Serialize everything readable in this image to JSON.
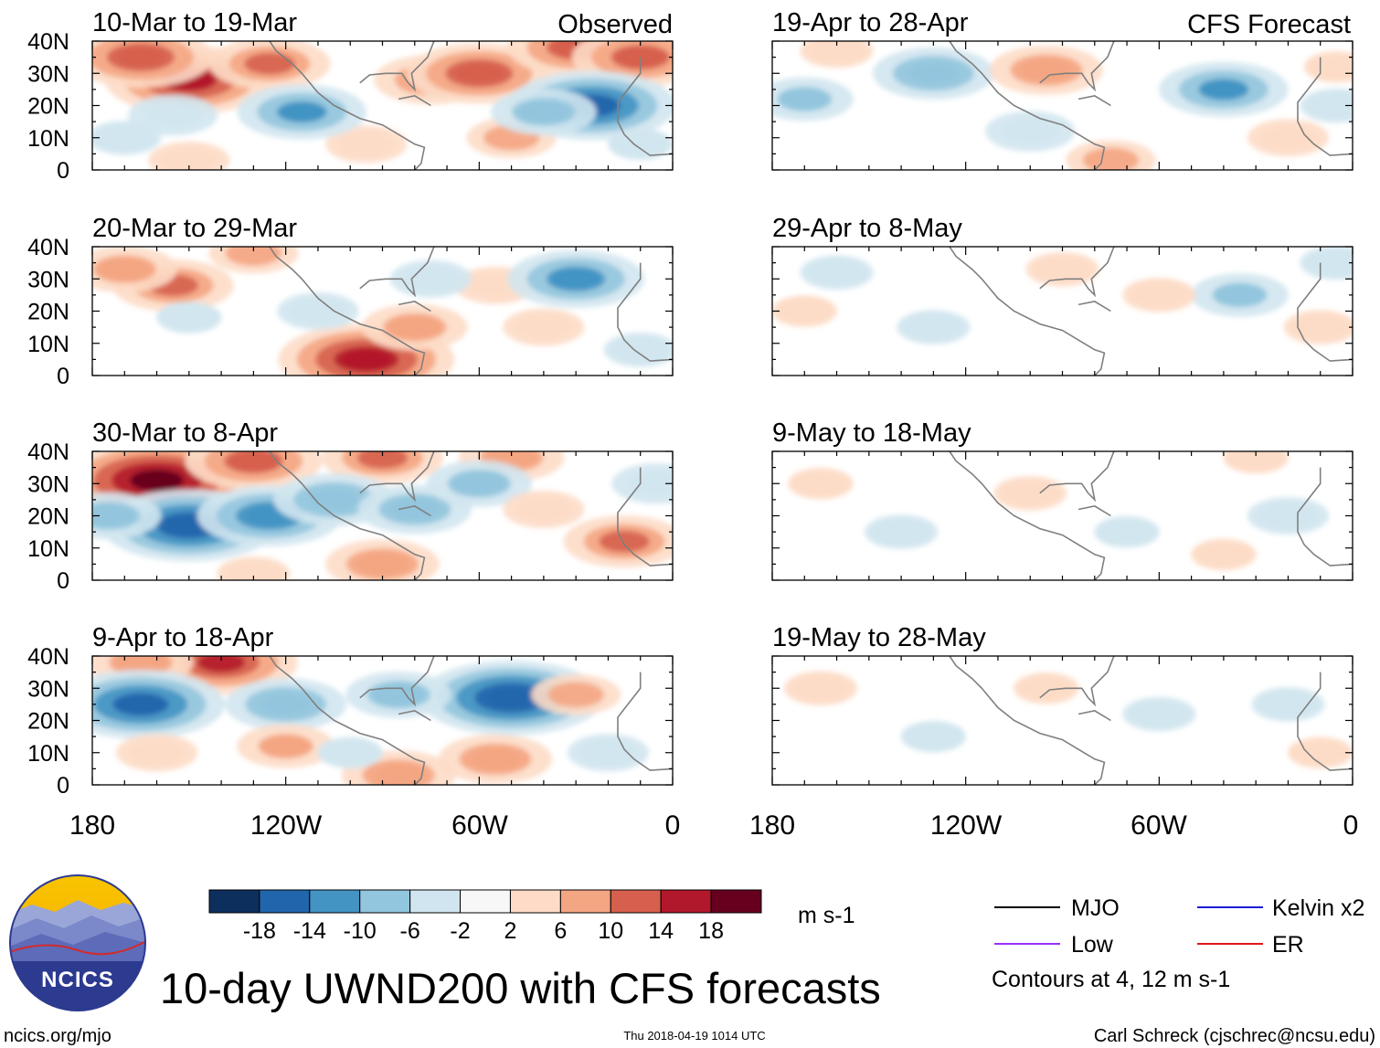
{
  "chart_data": {
    "type": "heatmap",
    "title": "10-day UWND200 with CFS forecasts",
    "units": "m s-1",
    "column_titles": [
      "Observed",
      "CFS Forecast"
    ],
    "x_ticks": [
      "180",
      "120W",
      "60W",
      "0"
    ],
    "y_ticks": [
      "40N",
      "30N",
      "20N",
      "10N",
      "0"
    ],
    "xlim": [
      -180,
      0
    ],
    "ylim": [
      0,
      40
    ],
    "colorbar": {
      "labels": [
        "-18",
        "-14",
        "-10",
        "-6",
        "-2",
        "2",
        "6",
        "10",
        "14",
        "18"
      ],
      "colors": [
        "#0d2f5e",
        "#2166ac",
        "#4393c3",
        "#92c5de",
        "#d1e5f0",
        "#f7f7f7",
        "#fddbc7",
        "#f4a582",
        "#d6604d",
        "#b2182b",
        "#67001f"
      ]
    },
    "legend": {
      "items": [
        {
          "label": "MJO",
          "color": "#000000"
        },
        {
          "label": "Kelvin x2",
          "color": "#1c1cd6"
        },
        {
          "label": "Low",
          "color": "#9b30ff"
        },
        {
          "label": "ER",
          "color": "#e0161b"
        }
      ],
      "note": "Contours at 4, 12 m s-1"
    },
    "panels": [
      {
        "label": "10-Mar to 19-Mar",
        "kind": "observed",
        "blobs": [
          {
            "lon": -150,
            "lat": 28,
            "value": 16
          },
          {
            "lon": -165,
            "lat": 35,
            "value": 13
          },
          {
            "lon": -125,
            "lat": 33,
            "value": 10
          },
          {
            "lon": -75,
            "lat": 28,
            "value": 9
          },
          {
            "lon": -60,
            "lat": 30,
            "value": 13
          },
          {
            "lon": -30,
            "lat": 38,
            "value": 12
          },
          {
            "lon": -10,
            "lat": 35,
            "value": 12
          },
          {
            "lon": -95,
            "lat": 8,
            "value": 5
          },
          {
            "lon": -50,
            "lat": 10,
            "value": 6
          },
          {
            "lon": -150,
            "lat": 3,
            "value": 5
          },
          {
            "lon": -25,
            "lat": 20,
            "value": -16
          },
          {
            "lon": -40,
            "lat": 18,
            "value": -8
          },
          {
            "lon": -115,
            "lat": 18,
            "value": -11
          },
          {
            "lon": -155,
            "lat": 17,
            "value": -6
          },
          {
            "lon": -170,
            "lat": 10,
            "value": -4
          },
          {
            "lon": -10,
            "lat": 8,
            "value": -3
          }
        ]
      },
      {
        "label": "19-Apr to 28-Apr",
        "kind": "forecast",
        "blobs": [
          {
            "lon": -130,
            "lat": 30,
            "value": -10
          },
          {
            "lon": -170,
            "lat": 22,
            "value": -7
          },
          {
            "lon": -40,
            "lat": 25,
            "value": -11
          },
          {
            "lon": -100,
            "lat": 12,
            "value": -6
          },
          {
            "lon": -5,
            "lat": 20,
            "value": -4
          },
          {
            "lon": -95,
            "lat": 31,
            "value": 9
          },
          {
            "lon": -75,
            "lat": 3,
            "value": 6
          },
          {
            "lon": -160,
            "lat": 37,
            "value": 4
          },
          {
            "lon": -20,
            "lat": 10,
            "value": 5
          },
          {
            "lon": -5,
            "lat": 32,
            "value": 3
          }
        ]
      },
      {
        "label": "20-Mar to 29-Mar",
        "kind": "observed",
        "blobs": [
          {
            "lon": -155,
            "lat": 28,
            "value": 10
          },
          {
            "lon": -170,
            "lat": 33,
            "value": 8
          },
          {
            "lon": -95,
            "lat": 5,
            "value": 17
          },
          {
            "lon": -80,
            "lat": 15,
            "value": 8
          },
          {
            "lon": -55,
            "lat": 28,
            "value": 5
          },
          {
            "lon": -40,
            "lat": 15,
            "value": 5
          },
          {
            "lon": -130,
            "lat": 38,
            "value": 6
          },
          {
            "lon": -30,
            "lat": 30,
            "value": -12
          },
          {
            "lon": -110,
            "lat": 20,
            "value": -5
          },
          {
            "lon": -75,
            "lat": 30,
            "value": -5
          },
          {
            "lon": -150,
            "lat": 18,
            "value": -3
          },
          {
            "lon": -10,
            "lat": 8,
            "value": -4
          }
        ]
      },
      {
        "label": "29-Apr to 8-May",
        "kind": "forecast",
        "blobs": [
          {
            "lon": -35,
            "lat": 25,
            "value": -7
          },
          {
            "lon": -130,
            "lat": 15,
            "value": -4
          },
          {
            "lon": -160,
            "lat": 32,
            "value": -4
          },
          {
            "lon": -90,
            "lat": 33,
            "value": 4
          },
          {
            "lon": -60,
            "lat": 25,
            "value": 4
          },
          {
            "lon": -10,
            "lat": 15,
            "value": 4
          },
          {
            "lon": -170,
            "lat": 20,
            "value": 3
          },
          {
            "lon": -5,
            "lat": 35,
            "value": -4
          }
        ]
      },
      {
        "label": "30-Mar to 8-Apr",
        "kind": "observed",
        "blobs": [
          {
            "lon": -160,
            "lat": 31,
            "value": 20
          },
          {
            "lon": -130,
            "lat": 37,
            "value": 12
          },
          {
            "lon": -90,
            "lat": 38,
            "value": 10
          },
          {
            "lon": -50,
            "lat": 38,
            "value": 8
          },
          {
            "lon": -150,
            "lat": 17,
            "value": -17
          },
          {
            "lon": -125,
            "lat": 20,
            "value": -13
          },
          {
            "lon": -105,
            "lat": 25,
            "value": -10
          },
          {
            "lon": -80,
            "lat": 22,
            "value": -9
          },
          {
            "lon": -60,
            "lat": 30,
            "value": -8
          },
          {
            "lon": -175,
            "lat": 20,
            "value": -8
          },
          {
            "lon": -15,
            "lat": 12,
            "value": 10
          },
          {
            "lon": -40,
            "lat": 22,
            "value": 5
          },
          {
            "lon": -90,
            "lat": 5,
            "value": 9
          },
          {
            "lon": -130,
            "lat": 2,
            "value": 4
          },
          {
            "lon": -5,
            "lat": 30,
            "value": -6
          }
        ]
      },
      {
        "label": "9-May to 18-May",
        "kind": "forecast",
        "blobs": [
          {
            "lon": -20,
            "lat": 20,
            "value": -5
          },
          {
            "lon": -140,
            "lat": 15,
            "value": -4
          },
          {
            "lon": -100,
            "lat": 27,
            "value": 4
          },
          {
            "lon": -165,
            "lat": 30,
            "value": 3
          },
          {
            "lon": -40,
            "lat": 8,
            "value": 3
          },
          {
            "lon": -70,
            "lat": 15,
            "value": -3
          },
          {
            "lon": -30,
            "lat": 38,
            "value": 3
          }
        ]
      },
      {
        "label": "9-Apr to 18-Apr",
        "kind": "observed",
        "blobs": [
          {
            "lon": -140,
            "lat": 38,
            "value": 14
          },
          {
            "lon": -165,
            "lat": 38,
            "value": 8
          },
          {
            "lon": -50,
            "lat": 27,
            "value": -18
          },
          {
            "lon": -165,
            "lat": 25,
            "value": -16
          },
          {
            "lon": -120,
            "lat": 25,
            "value": -10
          },
          {
            "lon": -85,
            "lat": 28,
            "value": -8
          },
          {
            "lon": -30,
            "lat": 28,
            "value": 6
          },
          {
            "lon": -120,
            "lat": 12,
            "value": 7
          },
          {
            "lon": -55,
            "lat": 8,
            "value": 9
          },
          {
            "lon": -85,
            "lat": 3,
            "value": 9
          },
          {
            "lon": -160,
            "lat": 10,
            "value": 5
          },
          {
            "lon": -20,
            "lat": 10,
            "value": -5
          },
          {
            "lon": -100,
            "lat": 10,
            "value": -3
          }
        ]
      },
      {
        "label": "19-May to 28-May",
        "kind": "forecast",
        "blobs": [
          {
            "lon": -165,
            "lat": 30,
            "value": 4
          },
          {
            "lon": -95,
            "lat": 30,
            "value": 3
          },
          {
            "lon": -60,
            "lat": 22,
            "value": -4
          },
          {
            "lon": -20,
            "lat": 25,
            "value": -4
          },
          {
            "lon": -130,
            "lat": 15,
            "value": -3
          },
          {
            "lon": -10,
            "lat": 10,
            "value": 3
          }
        ]
      }
    ]
  },
  "logo": {
    "text": "NCICS"
  },
  "footer": {
    "left": "ncics.org/mjo",
    "center": "Thu 2018-04-19 1014 UTC",
    "right": "Carl Schreck (cjschrec@ncsu.edu)"
  }
}
